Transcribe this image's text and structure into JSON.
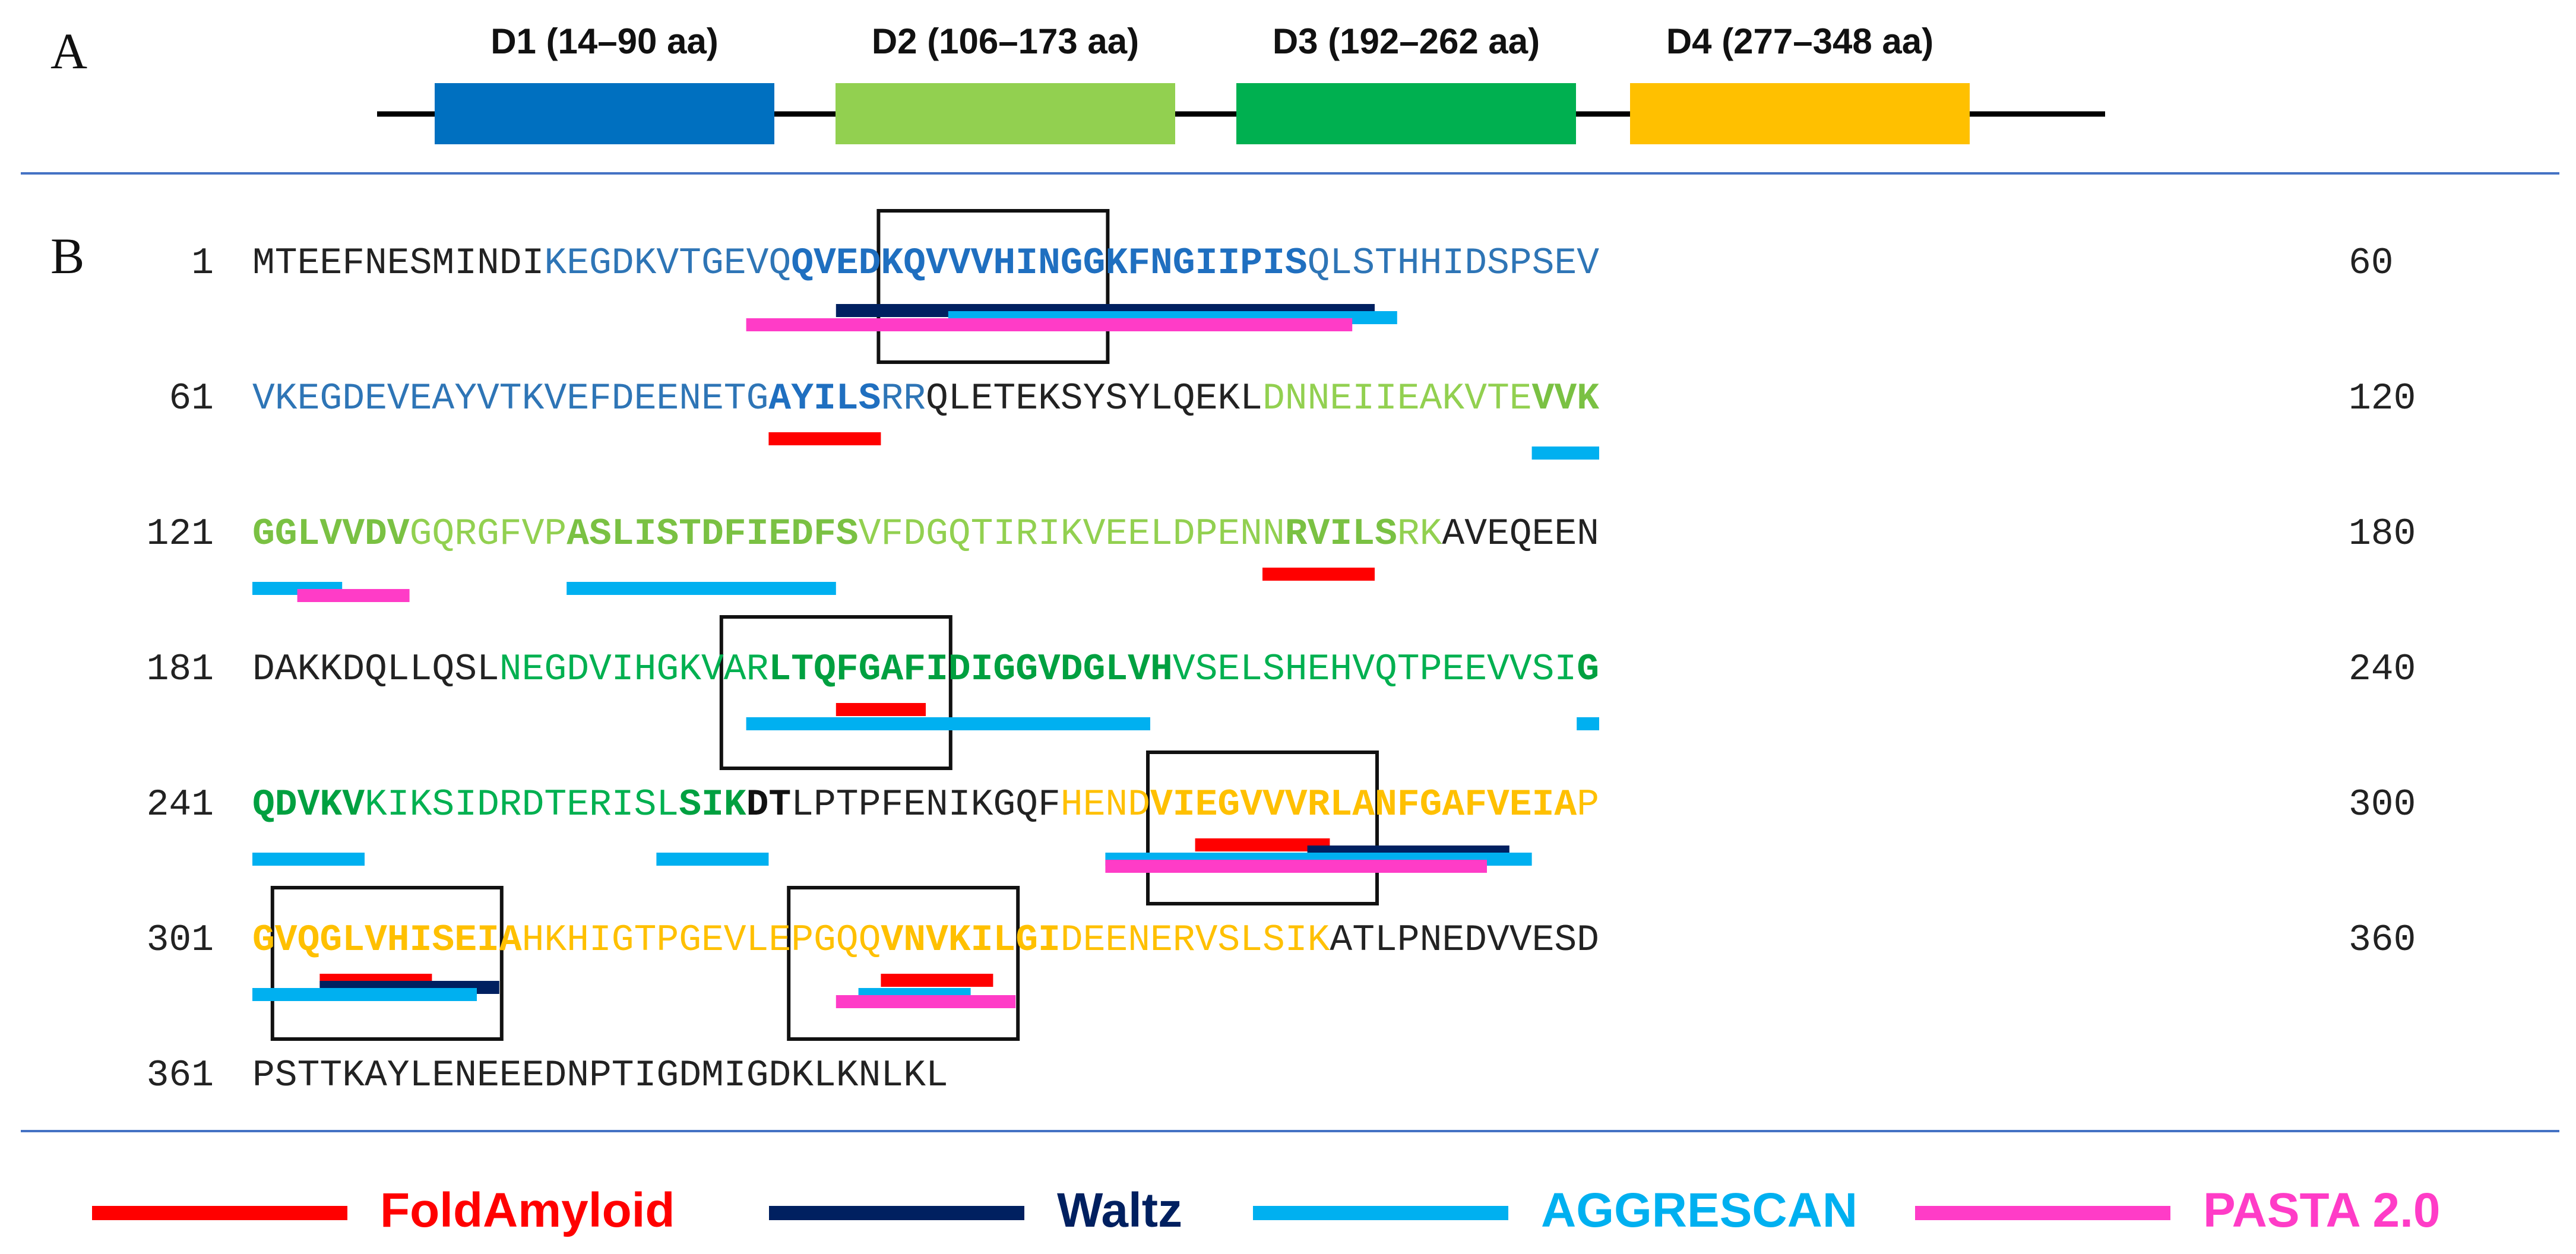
{
  "panel_a": {
    "label": "A",
    "domains": [
      {
        "name": "D1 (14–90 aa)",
        "start": 14,
        "end": 90,
        "color": "#0070C0"
      },
      {
        "name": "D2 (106–173 aa)",
        "start": 106,
        "end": 173,
        "color": "#92D050"
      },
      {
        "name": "D3 (192–262 aa)",
        "start": 192,
        "end": 262,
        "color": "#00B050"
      },
      {
        "name": "D4 (277–348 aa)",
        "start": 277,
        "end": 348,
        "color": "#FFC000"
      }
    ]
  },
  "panel_b": {
    "label": "B",
    "rows": [
      {
        "start": "1",
        "end": "60",
        "segments": [
          {
            "text": "MTEEFNESMINDI",
            "color": "#222222",
            "bold": false
          },
          {
            "text": "KEGDKVTGEVQ",
            "color": "#2E75B6",
            "bold": false
          },
          {
            "text": "QVEDKQVVVHINGGKFNGIIPIS",
            "color": "#1F6FC0",
            "bold": true
          },
          {
            "text": "QLSTHHIDSPSEV",
            "color": "#2E75B6",
            "bold": false
          }
        ]
      },
      {
        "start": "61",
        "end": "120",
        "segments": [
          {
            "text": "VKEGDEVEAYVTKVEFDEENETG",
            "color": "#2E75B6",
            "bold": false
          },
          {
            "text": "AYILS",
            "color": "#1F6FC0",
            "bold": true
          },
          {
            "text": "RR",
            "color": "#2E75B6",
            "bold": false
          },
          {
            "text": "QLETEKSYSYLQEKL",
            "color": "#222222",
            "bold": false
          },
          {
            "text": "DNNEIIEAKVTE",
            "color": "#92D050",
            "bold": false
          },
          {
            "text": "VVK",
            "color": "#7AC143",
            "bold": true
          }
        ]
      },
      {
        "start": "121",
        "end": "180",
        "segments": [
          {
            "text": "GGLVVDV",
            "color": "#7AC143",
            "bold": true
          },
          {
            "text": "GQRGFVP",
            "color": "#92D050",
            "bold": false
          },
          {
            "text": "ASLISTDFIEDFS",
            "color": "#7AC143",
            "bold": true
          },
          {
            "text": "VFDGQTIRIKVEELDPENN",
            "color": "#92D050",
            "bold": false
          },
          {
            "text": "RVILS",
            "color": "#7AC143",
            "bold": true
          },
          {
            "text": "RK",
            "color": "#92D050",
            "bold": false
          },
          {
            "text": "AVEQEEN",
            "color": "#222222",
            "bold": false
          }
        ]
      },
      {
        "start": "181",
        "end": "240",
        "segments": [
          {
            "text": "DAKKDQLLQSL",
            "color": "#222222",
            "bold": false
          },
          {
            "text": "NEGDVIHGKVAR",
            "color": "#00B050",
            "bold": false
          },
          {
            "text": "LTQFGAFIDIGGVDGLVH",
            "color": "#00A040",
            "bold": true
          },
          {
            "text": "VSELSHEHVQTPEEVVSI",
            "color": "#00B050",
            "bold": false
          },
          {
            "text": "G",
            "color": "#00A040",
            "bold": true
          }
        ]
      },
      {
        "start": "241",
        "end": "300",
        "segments": [
          {
            "text": "QDVKV",
            "color": "#00A040",
            "bold": true
          },
          {
            "text": "KIKSIDRDTERISL",
            "color": "#00B050",
            "bold": false
          },
          {
            "text": "SIK",
            "color": "#00A040",
            "bold": true
          },
          {
            "text": "DT",
            "color": "#111111",
            "bold": true
          },
          {
            "text": "LPTPFENIKGQF",
            "color": "#222222",
            "bold": false
          },
          {
            "text": "HEND",
            "color": "#FFC000",
            "bold": false
          },
          {
            "text": "VIEGVVVRLANFGAFVEIA",
            "color": "#FFC000",
            "bold": true
          },
          {
            "text": "P",
            "color": "#FFC000",
            "bold": false
          }
        ]
      },
      {
        "start": "301",
        "end": "360",
        "segments": [
          {
            "text": "GVQGLVHISEIA",
            "color": "#FFC000",
            "bold": true
          },
          {
            "text": "HKHIGTPGEVLEPGQQ",
            "color": "#FFC000",
            "bold": false
          },
          {
            "text": "VNVKILGI",
            "color": "#FFC000",
            "bold": true
          },
          {
            "text": "DEENERVSLSIK",
            "color": "#FFC000",
            "bold": false
          },
          {
            "text": "ATLPNEDVVESD",
            "color": "#222222",
            "bold": false
          }
        ]
      },
      {
        "start": "361",
        "end": "",
        "segments": [
          {
            "text": "PSTTKAYLENEEEDNPTIGDMIGDKLKNLKL",
            "color": "#222222",
            "bold": false
          }
        ]
      }
    ],
    "bars": [
      {
        "row": 0,
        "from": 26,
        "to": 49,
        "tool": "Waltz"
      },
      {
        "row": 0,
        "from": 31,
        "to": 50,
        "tool": "AGGRESCAN"
      },
      {
        "row": 0,
        "from": 22,
        "to": 48,
        "tool": "PASTA 2.0"
      },
      {
        "row": 1,
        "from": 23,
        "to": 27,
        "tool": "FoldAmyloid"
      },
      {
        "row": 1,
        "from": 57,
        "to": 59,
        "tool": "AGGRESCAN"
      },
      {
        "row": 2,
        "from": 0,
        "to": 3,
        "tool": "AGGRESCAN"
      },
      {
        "row": 2,
        "from": 2,
        "to": 6,
        "tool": "PASTA 2.0"
      },
      {
        "row": 2,
        "from": 14,
        "to": 25,
        "tool": "AGGRESCAN"
      },
      {
        "row": 2,
        "from": 45,
        "to": 49,
        "tool": "FoldAmyloid"
      },
      {
        "row": 3,
        "from": 26,
        "to": 29,
        "tool": "FoldAmyloid"
      },
      {
        "row": 3,
        "from": 22,
        "to": 39,
        "tool": "AGGRESCAN"
      },
      {
        "row": 3,
        "from": 59,
        "to": 59,
        "tool": "AGGRESCAN"
      },
      {
        "row": 4,
        "from": 0,
        "to": 4,
        "tool": "AGGRESCAN"
      },
      {
        "row": 4,
        "from": 18,
        "to": 22,
        "tool": "AGGRESCAN"
      },
      {
        "row": 4,
        "from": 42,
        "to": 47,
        "tool": "FoldAmyloid"
      },
      {
        "row": 4,
        "from": 47,
        "to": 55,
        "tool": "Waltz"
      },
      {
        "row": 4,
        "from": 38,
        "to": 56,
        "tool": "AGGRESCAN"
      },
      {
        "row": 4,
        "from": 38,
        "to": 54,
        "tool": "PASTA 2.0"
      },
      {
        "row": 5,
        "from": 3,
        "to": 7,
        "tool": "FoldAmyloid"
      },
      {
        "row": 5,
        "from": 3,
        "to": 10,
        "tool": "Waltz"
      },
      {
        "row": 5,
        "from": 0,
        "to": 9,
        "tool": "AGGRESCAN"
      },
      {
        "row": 5,
        "from": 28,
        "to": 32,
        "tool": "FoldAmyloid"
      },
      {
        "row": 5,
        "from": 27,
        "to": 31,
        "tool": "AGGRESCAN"
      },
      {
        "row": 5,
        "from": 26,
        "to": 33,
        "tool": "PASTA 2.0"
      }
    ],
    "boxes": [
      {
        "row": 0,
        "from": 28,
        "to": 37
      },
      {
        "row": 3,
        "from": 21,
        "to": 30
      },
      {
        "row": 4,
        "from": 40,
        "to": 49
      },
      {
        "row": 5,
        "from": 1,
        "to": 10
      },
      {
        "row": 5,
        "from": 24,
        "to": 33
      }
    ]
  },
  "legend": [
    {
      "tool": "FoldAmyloid",
      "label": "FoldAmyloid",
      "color": "#FF0000"
    },
    {
      "tool": "Waltz",
      "label": "Waltz",
      "color": "#002060"
    },
    {
      "tool": "AGGRESCAN",
      "label": "AGGRESCAN",
      "color": "#00B0F0"
    },
    {
      "tool": "PASTA 2.0",
      "label": "PASTA 2.0",
      "color": "#FF3CC7"
    }
  ]
}
